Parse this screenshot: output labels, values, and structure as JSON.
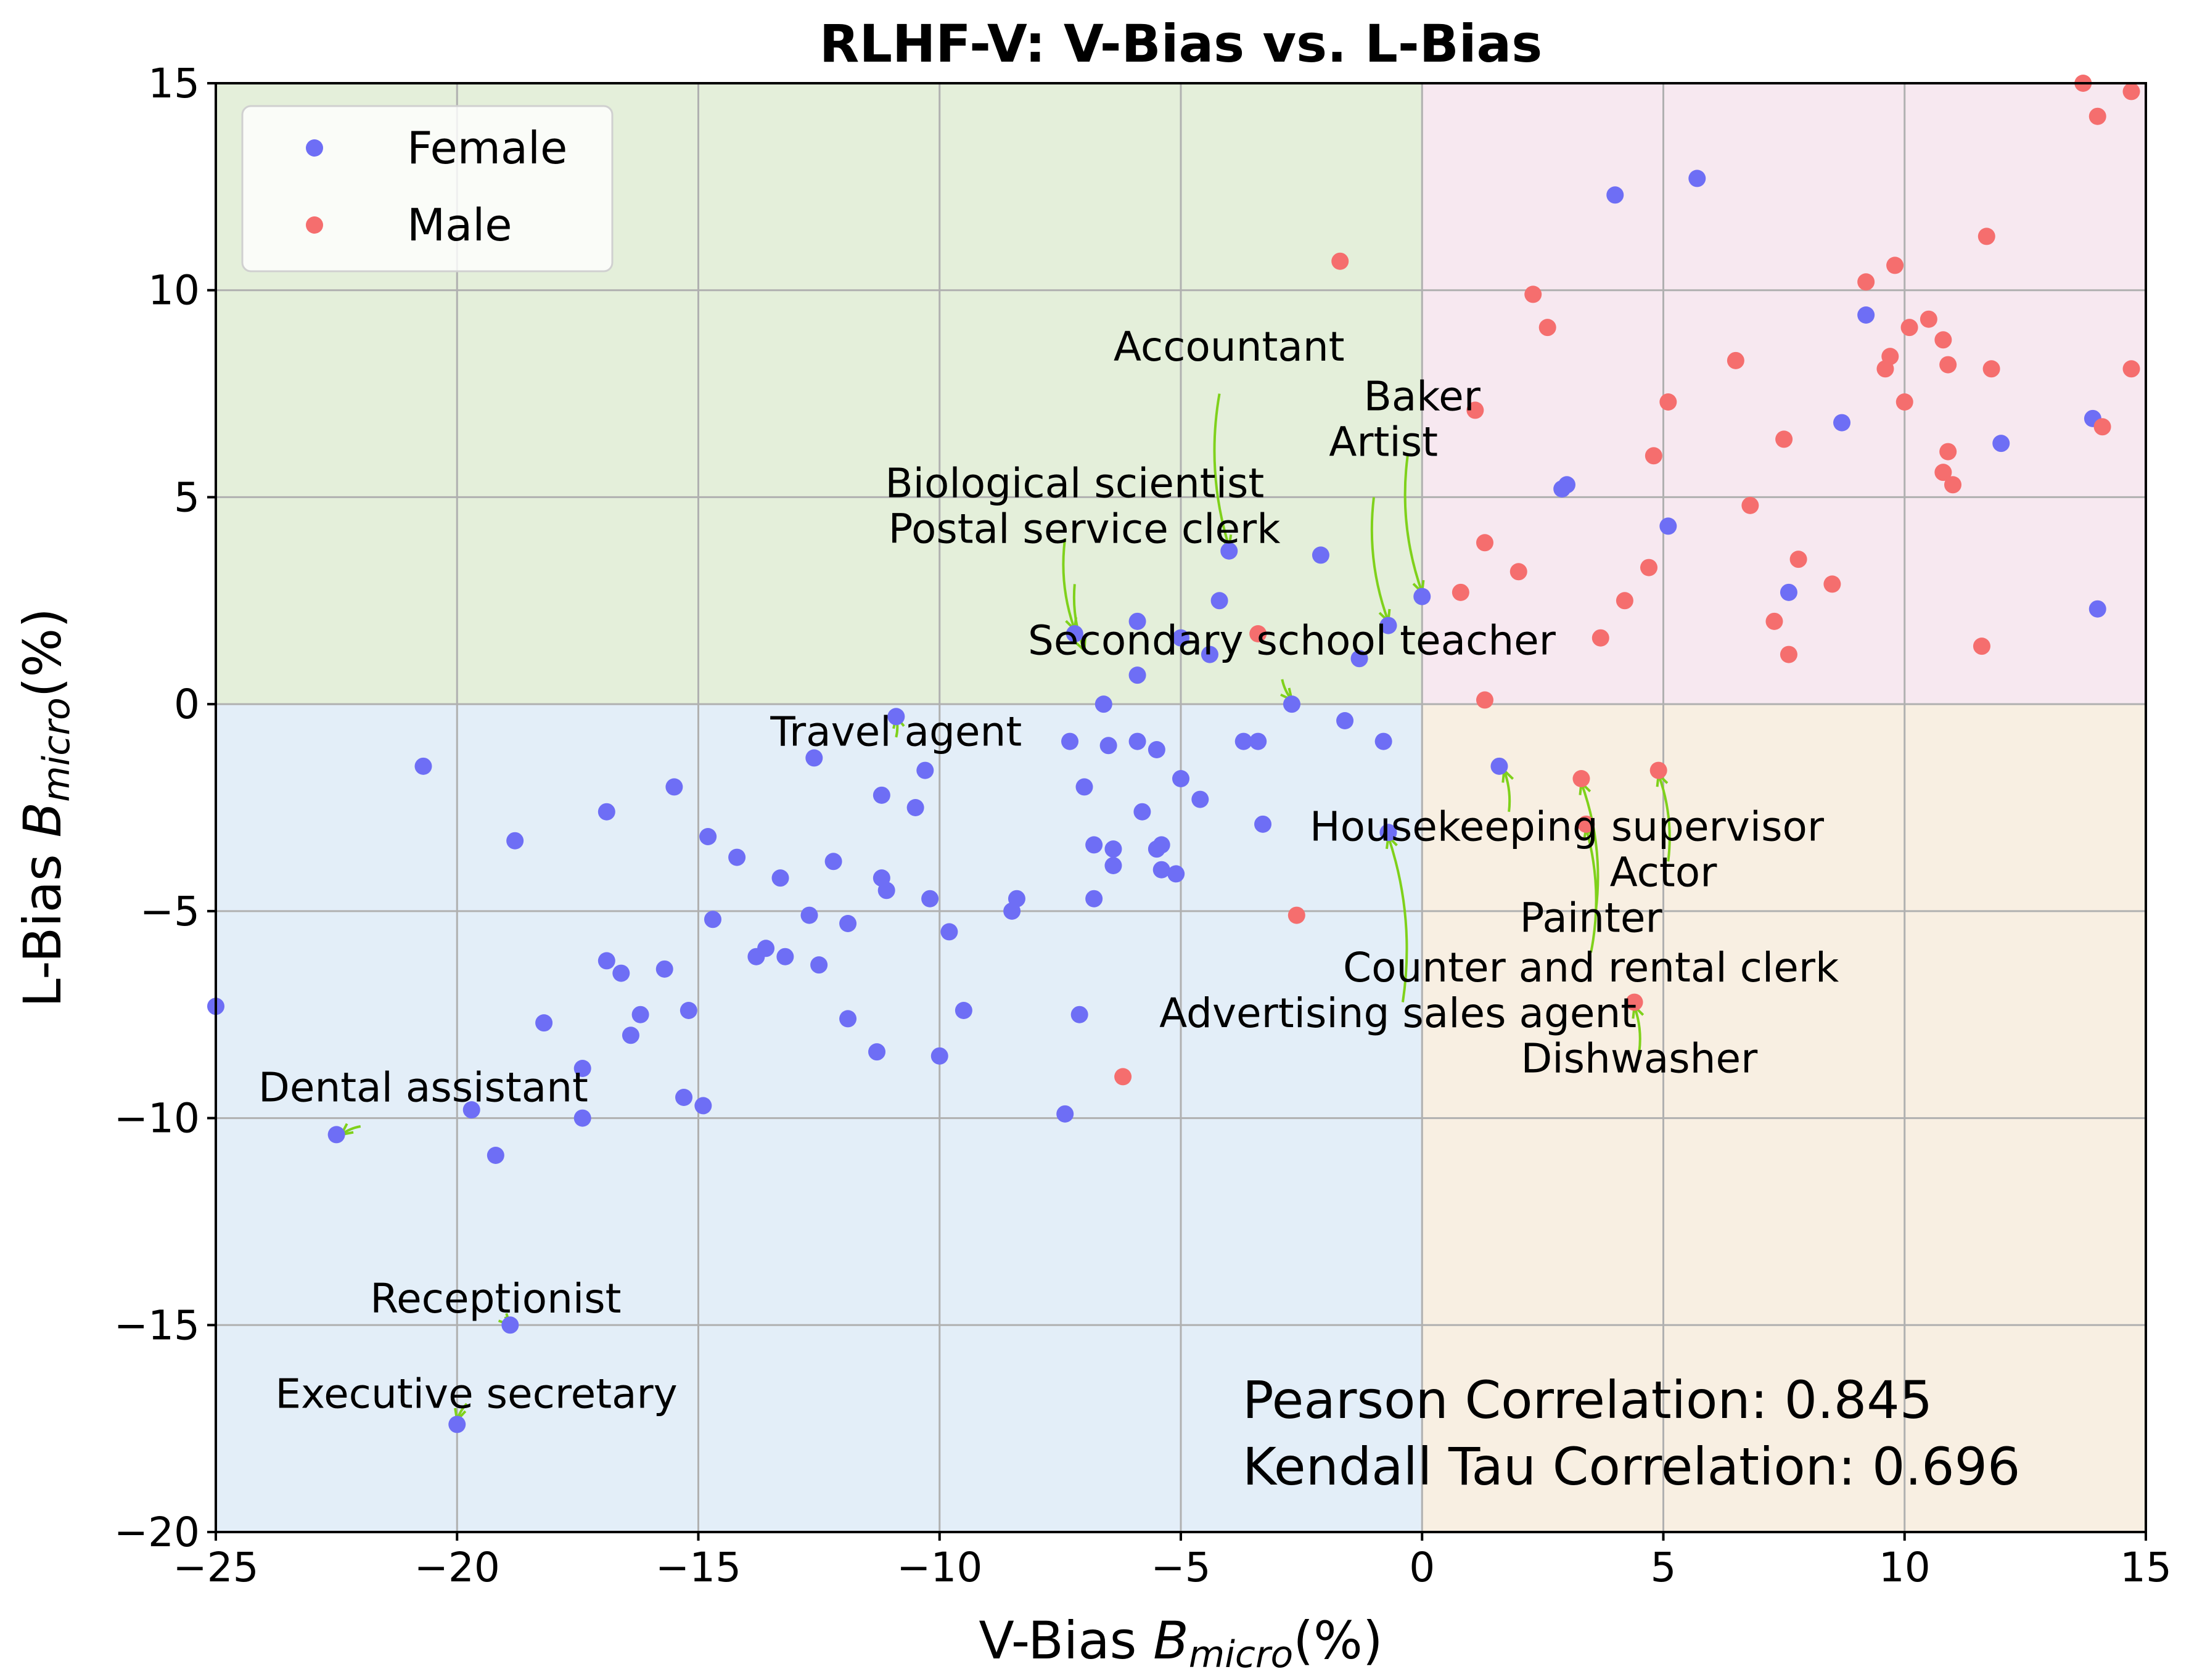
{
  "chart_data": {
    "type": "scatter",
    "title": "RLHF-V: V-Bias vs. L-Bias",
    "xlabel_prefix": "V-Bias",
    "ylabel_prefix": "L-Bias",
    "xlim": [
      -25,
      15
    ],
    "ylim": [
      -20,
      15
    ],
    "xticks": [
      -25,
      -20,
      -15,
      -10,
      -5,
      0,
      5,
      10,
      15
    ],
    "yticks": [
      -20,
      -15,
      -10,
      -5,
      0,
      5,
      10,
      15
    ],
    "grid": true,
    "legend_position": "top-left",
    "quadrant_colors": {
      "top_left": "#e4efda",
      "top_right": "#f7e8f0",
      "bottom_left": "#e3eef8",
      "bottom_right": "#f8efe2"
    },
    "series": [
      {
        "name": "Female",
        "color": "#6e6ef5",
        "points": [
          [
            -25.0,
            -7.3
          ],
          [
            -20.7,
            -1.5
          ],
          [
            -19.7,
            -9.8
          ],
          [
            -19.2,
            -10.9
          ],
          [
            -18.8,
            -3.3
          ],
          [
            -18.9,
            -15.0
          ],
          [
            -20.0,
            -17.4
          ],
          [
            -22.5,
            -10.4
          ],
          [
            -18.2,
            -7.7
          ],
          [
            -17.4,
            -8.8
          ],
          [
            -17.4,
            -10.0
          ],
          [
            -16.9,
            -2.6
          ],
          [
            -16.9,
            -6.2
          ],
          [
            -16.6,
            -6.5
          ],
          [
            -16.2,
            -7.5
          ],
          [
            -16.4,
            -8.0
          ],
          [
            -15.7,
            -6.4
          ],
          [
            -15.5,
            -2.0
          ],
          [
            -15.3,
            -9.5
          ],
          [
            -15.2,
            -7.4
          ],
          [
            -14.9,
            -9.7
          ],
          [
            -14.8,
            -3.2
          ],
          [
            -14.7,
            -5.2
          ],
          [
            -14.2,
            -3.7
          ],
          [
            -13.8,
            -6.1
          ],
          [
            -13.6,
            -5.9
          ],
          [
            -13.3,
            -4.2
          ],
          [
            -13.2,
            -6.1
          ],
          [
            -12.6,
            -1.3
          ],
          [
            -12.7,
            -5.1
          ],
          [
            -12.5,
            -6.3
          ],
          [
            -12.2,
            -3.8
          ],
          [
            -11.9,
            -7.6
          ],
          [
            -11.9,
            -5.3
          ],
          [
            -11.3,
            -8.4
          ],
          [
            -11.2,
            -2.2
          ],
          [
            -11.2,
            -4.2
          ],
          [
            -11.1,
            -4.5
          ],
          [
            -10.9,
            -0.3
          ],
          [
            -10.5,
            -2.5
          ],
          [
            -10.3,
            -1.6
          ],
          [
            -10.2,
            -4.7
          ],
          [
            -10.0,
            -8.5
          ],
          [
            -9.8,
            -5.5
          ],
          [
            -9.5,
            -7.4
          ],
          [
            -8.5,
            -5.0
          ],
          [
            -8.4,
            -4.7
          ],
          [
            -7.4,
            -9.9
          ],
          [
            -7.3,
            -0.9
          ],
          [
            -7.2,
            1.7
          ],
          [
            -7.1,
            -7.5
          ],
          [
            -7.0,
            -2.0
          ],
          [
            -6.8,
            -3.4
          ],
          [
            -6.8,
            -4.7
          ],
          [
            -6.6,
            0.0
          ],
          [
            -6.5,
            -1.0
          ],
          [
            -6.4,
            -3.9
          ],
          [
            -6.4,
            -3.5
          ],
          [
            -5.9,
            -0.9
          ],
          [
            -5.9,
            2.0
          ],
          [
            -5.9,
            0.7
          ],
          [
            -5.8,
            -2.6
          ],
          [
            -5.5,
            -1.1
          ],
          [
            -5.5,
            -3.5
          ],
          [
            -5.4,
            -3.4
          ],
          [
            -5.4,
            -4.0
          ],
          [
            -5.1,
            -4.1
          ],
          [
            -5.0,
            -1.8
          ],
          [
            -5.0,
            1.6
          ],
          [
            -4.6,
            -2.3
          ],
          [
            -4.4,
            1.2
          ],
          [
            -4.2,
            2.5
          ],
          [
            -4.0,
            3.7
          ],
          [
            -3.7,
            -0.9
          ],
          [
            -3.4,
            -0.9
          ],
          [
            -3.3,
            -2.9
          ],
          [
            -2.7,
            0.0
          ],
          [
            -2.1,
            3.6
          ],
          [
            -1.6,
            -0.4
          ],
          [
            -1.3,
            1.1
          ],
          [
            -0.8,
            -0.9
          ],
          [
            -0.7,
            1.9
          ],
          [
            -0.7,
            -3.1
          ],
          [
            0.0,
            2.6
          ],
          [
            1.6,
            -1.5
          ],
          [
            2.9,
            5.2
          ],
          [
            3.0,
            5.3
          ],
          [
            4.0,
            12.3
          ],
          [
            5.1,
            4.3
          ],
          [
            5.7,
            12.7
          ],
          [
            7.6,
            2.7
          ],
          [
            8.7,
            6.8
          ],
          [
            9.2,
            9.4
          ],
          [
            12.0,
            6.3
          ],
          [
            13.9,
            6.9
          ],
          [
            14.0,
            2.3
          ]
        ]
      },
      {
        "name": "Male",
        "color": "#f56e6e",
        "points": [
          [
            -1.7,
            10.7
          ],
          [
            -3.4,
            1.7
          ],
          [
            -2.6,
            -5.1
          ],
          [
            -6.2,
            -9.0
          ],
          [
            0.8,
            2.7
          ],
          [
            1.1,
            7.1
          ],
          [
            1.3,
            3.9
          ],
          [
            1.3,
            0.1
          ],
          [
            2.0,
            3.2
          ],
          [
            2.3,
            9.9
          ],
          [
            2.6,
            9.1
          ],
          [
            3.7,
            1.6
          ],
          [
            3.3,
            -1.8
          ],
          [
            3.4,
            -2.9
          ],
          [
            4.2,
            2.5
          ],
          [
            4.4,
            -7.2
          ],
          [
            4.7,
            3.3
          ],
          [
            4.8,
            6.0
          ],
          [
            4.9,
            -1.6
          ],
          [
            5.1,
            7.3
          ],
          [
            6.5,
            8.3
          ],
          [
            6.8,
            4.8
          ],
          [
            7.3,
            2.0
          ],
          [
            7.5,
            6.4
          ],
          [
            7.6,
            1.2
          ],
          [
            7.8,
            3.5
          ],
          [
            8.5,
            2.9
          ],
          [
            9.2,
            10.2
          ],
          [
            9.6,
            8.1
          ],
          [
            9.7,
            8.4
          ],
          [
            9.8,
            10.6
          ],
          [
            10.0,
            7.3
          ],
          [
            10.1,
            9.1
          ],
          [
            10.5,
            9.3
          ],
          [
            10.8,
            5.6
          ],
          [
            10.8,
            8.8
          ],
          [
            10.9,
            6.1
          ],
          [
            10.9,
            8.2
          ],
          [
            11.0,
            5.3
          ],
          [
            11.6,
            1.4
          ],
          [
            11.7,
            11.3
          ],
          [
            11.8,
            8.1
          ],
          [
            13.7,
            15.0
          ],
          [
            14.0,
            14.2
          ],
          [
            14.1,
            6.7
          ],
          [
            14.7,
            14.8
          ],
          [
            14.7,
            8.1
          ]
        ]
      }
    ],
    "annotations": [
      {
        "text": "Accountant",
        "x": -4.0,
        "y": 8.3,
        "arrow_from": [
          -4.2,
          7.5
        ],
        "arrow_to": [
          -4.0,
          3.8
        ]
      },
      {
        "text": "Baker",
        "x": 0.0,
        "y": 7.1,
        "arrow_from": [
          -0.3,
          6.0
        ],
        "arrow_to": [
          0.0,
          2.7
        ]
      },
      {
        "text": "Artist",
        "x": -0.8,
        "y": 6.0,
        "arrow_from": [
          -1.0,
          5.0
        ],
        "arrow_to": [
          -0.7,
          2.0
        ]
      },
      {
        "text": "Biological scientist",
        "x": -7.2,
        "y": 5.0,
        "arrow_from": [
          -7.4,
          4.0
        ],
        "arrow_to": [
          -7.2,
          1.8
        ]
      },
      {
        "text": "Postal service clerk",
        "x": -7.0,
        "y": 3.9,
        "arrow_from": [
          -7.2,
          2.9
        ],
        "arrow_to": [
          -7.0,
          1.3
        ]
      },
      {
        "text": "Secondary school teacher",
        "x": -2.7,
        "y": 1.2,
        "arrow_from": [
          -2.9,
          0.6
        ],
        "arrow_to": [
          -2.7,
          0.1
        ]
      },
      {
        "text": "Travel agent",
        "x": -10.9,
        "y": -1.0,
        "arrow_from": [
          -10.9,
          -0.8
        ],
        "arrow_to": [
          -10.9,
          -0.3
        ]
      },
      {
        "text": "Housekeeping supervisor",
        "x": 3.0,
        "y": -3.3,
        "arrow_from": [
          1.8,
          -2.6
        ],
        "arrow_to": [
          1.7,
          -1.6
        ]
      },
      {
        "text": "Actor",
        "x": 5.0,
        "y": -4.4,
        "arrow_from": [
          5.1,
          -3.8
        ],
        "arrow_to": [
          4.9,
          -1.7
        ]
      },
      {
        "text": "Painter",
        "x": 3.5,
        "y": -5.5,
        "arrow_from": [
          3.6,
          -5.0
        ],
        "arrow_to": [
          3.3,
          -1.9
        ]
      },
      {
        "text": "Counter and rental clerk",
        "x": 3.5,
        "y": -6.7,
        "arrow_from": [
          3.5,
          -6.0
        ],
        "arrow_to": [
          3.4,
          -3.0
        ]
      },
      {
        "text": "Advertising sales agent",
        "x": -0.5,
        "y": -7.8,
        "arrow_from": [
          -0.4,
          -7.2
        ],
        "arrow_to": [
          -0.7,
          -3.2
        ]
      },
      {
        "text": "Dishwasher",
        "x": 4.5,
        "y": -8.9,
        "arrow_from": [
          4.5,
          -8.4
        ],
        "arrow_to": [
          4.4,
          -7.3
        ]
      },
      {
        "text": "Dental assistant",
        "x": -20.7,
        "y": -9.6,
        "arrow_from": [
          -22.0,
          -10.2
        ],
        "arrow_to": [
          -22.4,
          -10.4
        ]
      },
      {
        "text": "Receptionist",
        "x": -19.2,
        "y": -14.7,
        "arrow_from": [
          -19.0,
          -14.8
        ],
        "arrow_to": [
          -18.9,
          -15.0
        ]
      },
      {
        "text": "Executive secretary",
        "x": -19.6,
        "y": -17.0,
        "arrow_from": [
          -19.8,
          -16.9
        ],
        "arrow_to": [
          -20.0,
          -17.3
        ]
      }
    ],
    "correlation": {
      "pearson": "Pearson Correlation: 0.845",
      "kendall": "Kendall Tau Correlation: 0.696"
    }
  }
}
